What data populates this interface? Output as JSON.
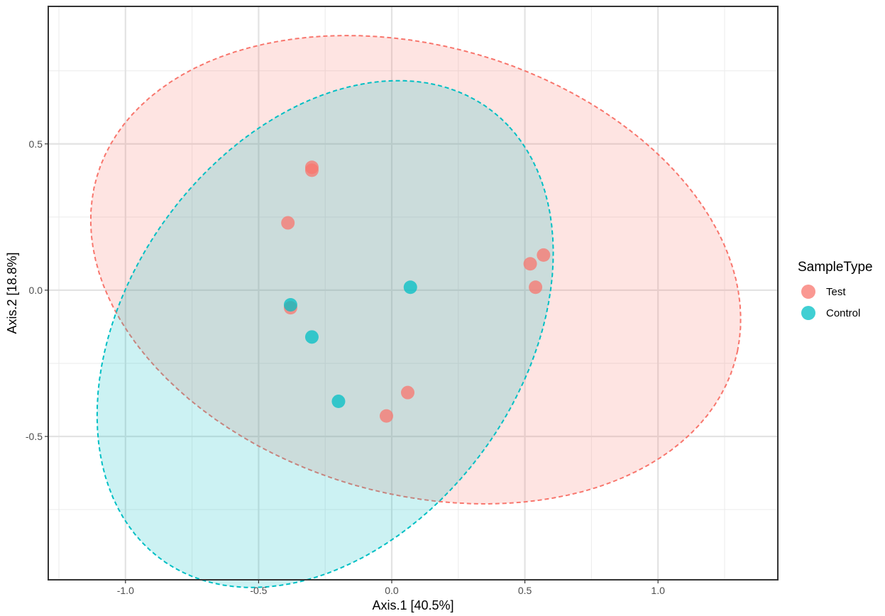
{
  "chart_data": {
    "type": "scatter",
    "xlabel": "Axis.1   [40.5%]",
    "ylabel": "Axis.2   [18.8%]",
    "xlim": [
      -1.29,
      1.45
    ],
    "ylim": [
      -0.99,
      0.97
    ],
    "x_ticks": [
      -1.0,
      -0.5,
      0.0,
      0.5,
      1.0
    ],
    "x_tick_labels": [
      "-1.0",
      "-0.5",
      "0.0",
      "0.5",
      "1.0"
    ],
    "y_ticks": [
      -0.5,
      0.0,
      0.5
    ],
    "y_tick_labels": [
      "-0.5",
      "0.0",
      "0.5"
    ],
    "grid": true,
    "legend": {
      "title": "SampleType",
      "position": "right"
    },
    "series": [
      {
        "name": "Test",
        "color": "#F8766D",
        "x": [
          -0.3,
          -0.3,
          -0.39,
          0.52,
          0.57,
          0.54,
          -0.38,
          0.06,
          -0.02
        ],
        "y": [
          0.42,
          0.41,
          0.23,
          0.09,
          0.12,
          0.01,
          -0.06,
          -0.35,
          -0.43
        ]
      },
      {
        "name": "Control",
        "color": "#00BFC4",
        "x": [
          -0.38,
          -0.3,
          0.07,
          -0.2
        ],
        "y": [
          -0.05,
          -0.16,
          0.01,
          -0.38
        ]
      }
    ],
    "ellipses": [
      {
        "series": "Test",
        "center": [
          0.09,
          0.07
        ],
        "semi_axes": [
          1.24,
          0.77
        ],
        "angle_deg": -13
      },
      {
        "series": "Control",
        "center": [
          -0.25,
          -0.15
        ],
        "semi_axes": [
          0.99,
          0.71
        ],
        "angle_deg": 46
      }
    ]
  }
}
